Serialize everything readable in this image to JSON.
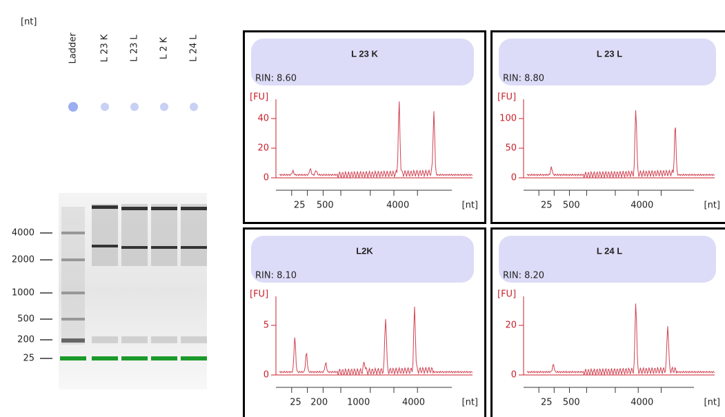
{
  "gel": {
    "axis_unit": "[nt]",
    "lanes": [
      "Ladder",
      "L 23 K",
      "L 23 L",
      "L 2 K",
      "L 24 L"
    ],
    "size_markers": [
      "4000",
      "2000",
      "1000",
      "500",
      "200",
      "25"
    ]
  },
  "panels": [
    {
      "title": "L 23 K",
      "rin": "RIN: 8.60",
      "y_unit": "[FU]",
      "yticks": [
        "0",
        "20",
        "40"
      ],
      "xticks": [
        "25",
        "500",
        "4000"
      ],
      "x_unit": "[nt]"
    },
    {
      "title": "L 23 L",
      "rin": "RIN: 8.80",
      "y_unit": "[FU]",
      "yticks": [
        "0",
        "50",
        "100"
      ],
      "xticks": [
        "25",
        "500",
        "4000"
      ],
      "x_unit": "[nt]"
    },
    {
      "title": "L2K",
      "rin": "RIN: 8.10",
      "y_unit": "[FU]",
      "yticks": [
        "0",
        "5"
      ],
      "xticks": [
        "25",
        "200",
        "1000",
        "4000"
      ],
      "x_unit": "[nt]"
    },
    {
      "title": "L 24 L",
      "rin": "RIN: 8.20",
      "y_unit": "[FU]",
      "yticks": [
        "0",
        "20"
      ],
      "xticks": [
        "25",
        "500",
        "4000"
      ],
      "x_unit": "[nt]"
    }
  ]
}
